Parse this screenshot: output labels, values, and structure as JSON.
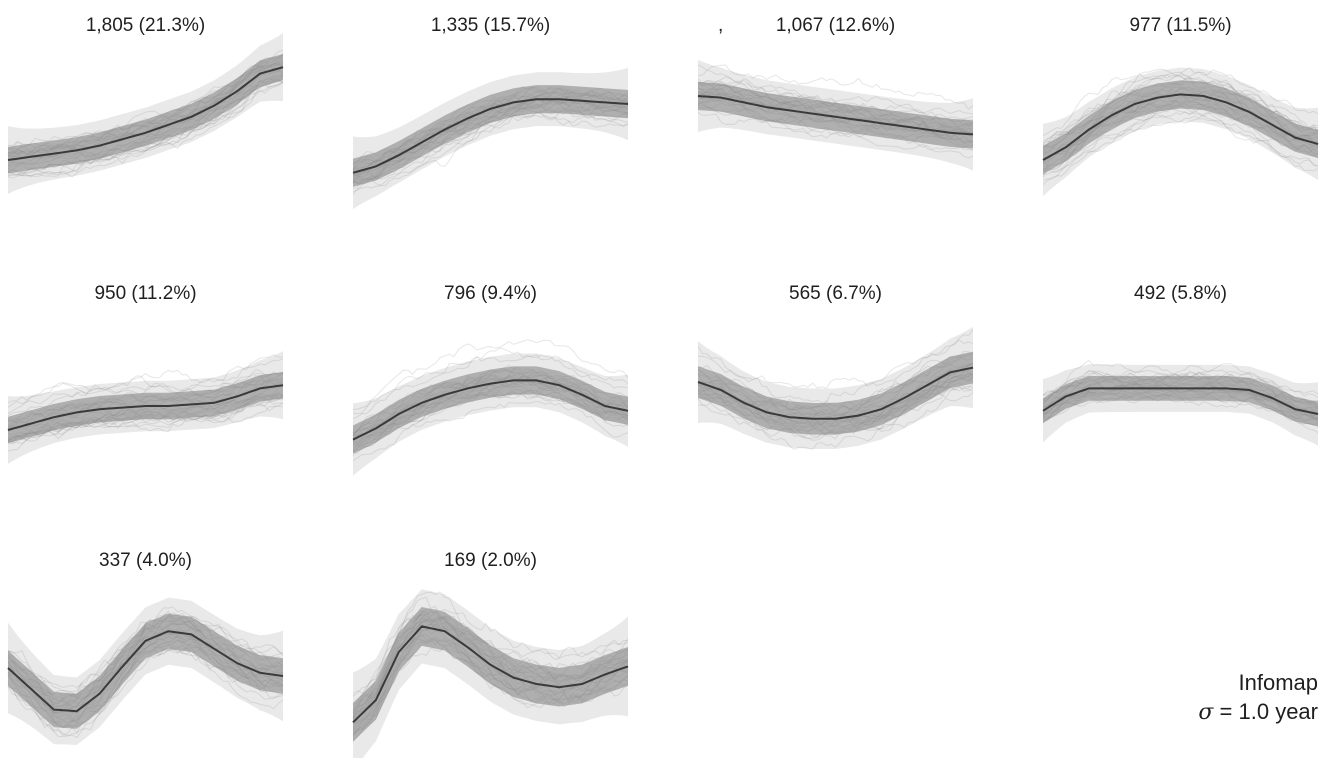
{
  "chart_data": {
    "type": "line",
    "title": "",
    "xlabel": "",
    "ylabel": "",
    "grid": false,
    "legend": "none",
    "stray_mark": ",",
    "method": {
      "name": "Infomap",
      "sigma_symbol": "σ",
      "sigma_rest": " = 1.0 year"
    },
    "colors": {
      "trajectories": "#8f8f8f",
      "band_core": "#8a8a8a",
      "band_outer": "#cfcfcf",
      "mean_line": "#3a3a3a"
    },
    "panels": [
      {
        "label": "1,805 (21.3%)",
        "size": 1805,
        "percent": 21.3,
        "mean": [
          0.3,
          0.32,
          0.34,
          0.36,
          0.39,
          0.43,
          0.47,
          0.52,
          0.57,
          0.64,
          0.73,
          0.84,
          0.88
        ],
        "spread": 0.15
      },
      {
        "label": "1,335 (15.7%)",
        "size": 1335,
        "percent": 15.7,
        "mean": [
          0.22,
          0.26,
          0.33,
          0.41,
          0.49,
          0.56,
          0.62,
          0.66,
          0.68,
          0.68,
          0.67,
          0.66,
          0.65
        ],
        "spread": 0.16
      },
      {
        "label": "1,067 (12.6%)",
        "size": 1067,
        "percent": 12.6,
        "mean": [
          0.7,
          0.69,
          0.66,
          0.63,
          0.61,
          0.59,
          0.57,
          0.55,
          0.53,
          0.51,
          0.49,
          0.47,
          0.46
        ],
        "spread": 0.16
      },
      {
        "label": "977 (11.5%)",
        "size": 977,
        "percent": 11.5,
        "mean": [
          0.3,
          0.38,
          0.49,
          0.58,
          0.65,
          0.69,
          0.71,
          0.7,
          0.66,
          0.6,
          0.52,
          0.44,
          0.4
        ],
        "spread": 0.16
      },
      {
        "label": "950 (11.2%)",
        "size": 950,
        "percent": 11.2,
        "mean": [
          0.3,
          0.34,
          0.38,
          0.41,
          0.43,
          0.44,
          0.45,
          0.45,
          0.46,
          0.47,
          0.51,
          0.56,
          0.58
        ],
        "spread": 0.15
      },
      {
        "label": "796 (9.4%)",
        "size": 796,
        "percent": 9.4,
        "mean": [
          0.24,
          0.31,
          0.4,
          0.47,
          0.52,
          0.56,
          0.59,
          0.61,
          0.61,
          0.58,
          0.52,
          0.45,
          0.42
        ],
        "spread": 0.16
      },
      {
        "label": "565 (6.7%)",
        "size": 565,
        "percent": 6.7,
        "mean": [
          0.6,
          0.55,
          0.47,
          0.41,
          0.38,
          0.37,
          0.37,
          0.39,
          0.43,
          0.5,
          0.58,
          0.66,
          0.69
        ],
        "spread": 0.18
      },
      {
        "label": "492 (5.8%)",
        "size": 492,
        "percent": 5.8,
        "mean": [
          0.42,
          0.51,
          0.56,
          0.56,
          0.56,
          0.56,
          0.56,
          0.56,
          0.56,
          0.55,
          0.5,
          0.43,
          0.4
        ],
        "spread": 0.14
      },
      {
        "label": "337 (4.0%)",
        "size": 337,
        "percent": 4.0,
        "mean": [
          0.5,
          0.37,
          0.24,
          0.23,
          0.34,
          0.51,
          0.67,
          0.73,
          0.71,
          0.62,
          0.53,
          0.47,
          0.45
        ],
        "spread": 0.2
      },
      {
        "label": "169 (2.0%)",
        "size": 169,
        "percent": 2.0,
        "mean": [
          0.16,
          0.3,
          0.6,
          0.76,
          0.73,
          0.63,
          0.52,
          0.44,
          0.4,
          0.38,
          0.4,
          0.46,
          0.51
        ],
        "spread": 0.22
      }
    ]
  }
}
